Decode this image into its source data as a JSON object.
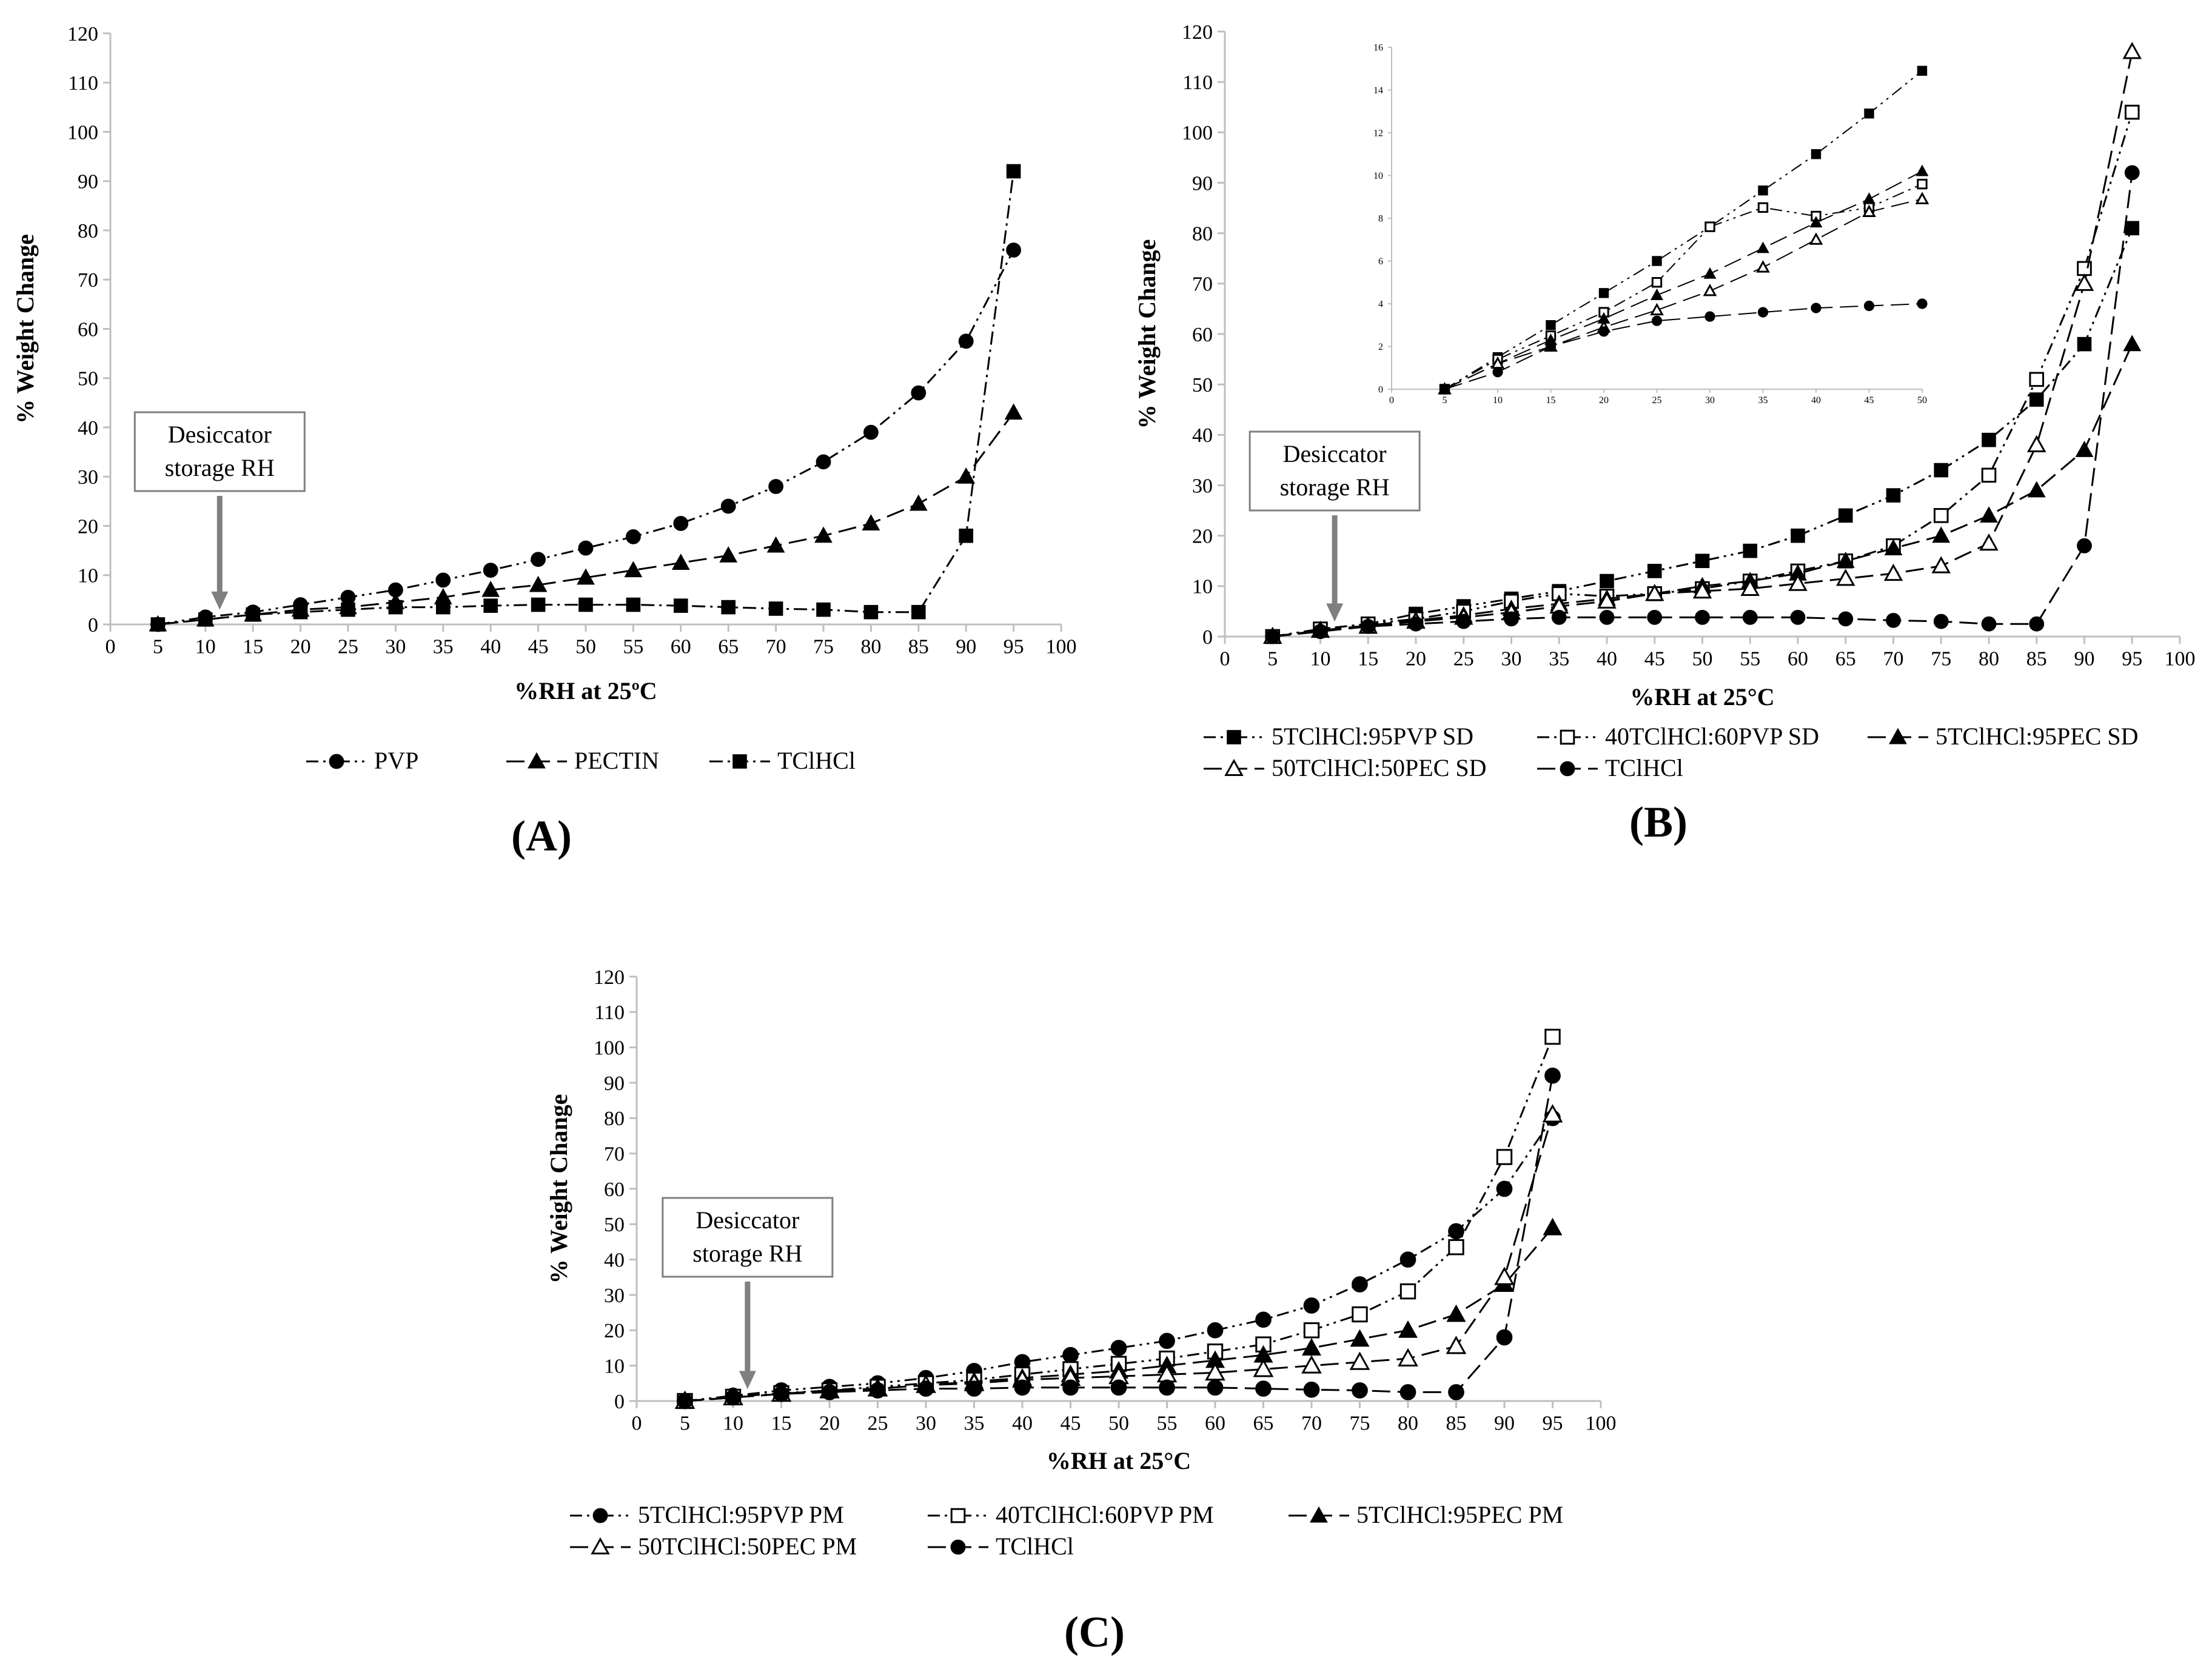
{
  "colors": {
    "axis": "#bfbfbf",
    "ink": "#000000",
    "arrow": "#808080",
    "box": "#808080"
  },
  "annotation": {
    "line1": "Desiccator",
    "line2": "storage RH"
  },
  "chart_data": [
    {
      "id": "A",
      "type": "line",
      "panel_label": "(A)",
      "xlabel": "%RH at 25ºC",
      "ylabel": "% Weight Change",
      "xlim": [
        0,
        100
      ],
      "ylim": [
        0,
        120
      ],
      "xticks": [
        0,
        5,
        10,
        15,
        20,
        25,
        30,
        35,
        40,
        45,
        50,
        55,
        60,
        65,
        70,
        75,
        80,
        85,
        90,
        95,
        100
      ],
      "yticks": [
        0,
        10,
        20,
        30,
        40,
        50,
        60,
        70,
        80,
        90,
        100,
        110,
        120
      ],
      "annotation_x": 11.5,
      "series": [
        {
          "name": "PVP",
          "marker": "circle",
          "dash": "dashdotdot",
          "x": [
            5,
            10,
            15,
            20,
            25,
            30,
            35,
            40,
            45,
            50,
            55,
            60,
            65,
            70,
            75,
            80,
            85,
            90,
            95
          ],
          "y": [
            0,
            1.5,
            2.5,
            4,
            5.5,
            7,
            9,
            11,
            13.2,
            15.5,
            17.8,
            20.5,
            24,
            28,
            33,
            39,
            47,
            57.5,
            76
          ]
        },
        {
          "name": "PECTIN",
          "marker": "triangle",
          "dash": "longdash",
          "x": [
            5,
            10,
            15,
            20,
            25,
            30,
            35,
            40,
            45,
            50,
            55,
            60,
            65,
            70,
            75,
            80,
            85,
            90,
            95
          ],
          "y": [
            0,
            1,
            2,
            3,
            3.5,
            4.5,
            5.5,
            7,
            8,
            9.5,
            11,
            12.5,
            14,
            16,
            18,
            20.5,
            24.5,
            30,
            43
          ]
        },
        {
          "name": "TClHCl",
          "marker": "square",
          "dash": "dashdot",
          "x": [
            5,
            10,
            15,
            20,
            25,
            30,
            35,
            40,
            45,
            50,
            55,
            60,
            65,
            70,
            75,
            80,
            85,
            90,
            95
          ],
          "y": [
            0,
            1,
            2,
            2.5,
            3,
            3.5,
            3.5,
            3.8,
            4,
            4,
            4,
            3.8,
            3.5,
            3.2,
            3,
            2.5,
            2.5,
            18,
            92
          ]
        }
      ]
    },
    {
      "id": "B",
      "type": "line",
      "panel_label": "(B)",
      "xlabel": "%RH at 25°C",
      "ylabel": "% Weight Change",
      "xlim": [
        0,
        100
      ],
      "ylim": [
        0,
        120
      ],
      "xticks": [
        0,
        5,
        10,
        15,
        20,
        25,
        30,
        35,
        40,
        45,
        50,
        55,
        60,
        65,
        70,
        75,
        80,
        85,
        90,
        95,
        100
      ],
      "yticks": [
        0,
        10,
        20,
        30,
        40,
        50,
        60,
        70,
        80,
        90,
        100,
        110,
        120
      ],
      "annotation_x": 11.5,
      "series": [
        {
          "name": "5TClHCl:95PVP SD",
          "marker": "square",
          "dash": "dashdotdot",
          "x": [
            5,
            10,
            15,
            20,
            25,
            30,
            35,
            40,
            45,
            50,
            55,
            60,
            65,
            70,
            75,
            80,
            85,
            90,
            95
          ],
          "y": [
            0,
            1.5,
            2.5,
            4.5,
            6,
            7.5,
            9,
            11,
            13,
            15,
            17,
            20,
            24,
            28,
            33,
            39,
            47,
            58,
            81
          ]
        },
        {
          "name": "40TClHCl:60PVP SD",
          "marker": "square-open",
          "dash": "dashdotdot",
          "x": [
            5,
            10,
            15,
            20,
            25,
            30,
            35,
            40,
            45,
            50,
            55,
            60,
            65,
            70,
            75,
            80,
            85,
            90,
            95
          ],
          "y": [
            0,
            1.5,
            2.5,
            3.5,
            5,
            7,
            8.5,
            8,
            8.5,
            9.5,
            11,
            13,
            15,
            18,
            24,
            32,
            51,
            73,
            104
          ]
        },
        {
          "name": "5TClHCl:95PEC SD",
          "marker": "triangle",
          "dash": "longdash",
          "x": [
            5,
            10,
            15,
            20,
            25,
            30,
            35,
            40,
            45,
            50,
            55,
            60,
            65,
            70,
            75,
            80,
            85,
            90,
            95
          ],
          "y": [
            0,
            1.2,
            2.2,
            3.2,
            4.2,
            5.5,
            6.5,
            7.5,
            8.5,
            10,
            11,
            12.5,
            15,
            17.5,
            20,
            24,
            29,
            37,
            58
          ]
        },
        {
          "name": "50TClHCl:50PEC SD",
          "marker": "triangle-open",
          "dash": "longdash",
          "x": [
            5,
            10,
            15,
            20,
            25,
            30,
            35,
            40,
            45,
            50,
            55,
            60,
            65,
            70,
            75,
            80,
            85,
            90,
            95
          ],
          "y": [
            0,
            1.2,
            2,
            3,
            3.8,
            4.8,
            6,
            7,
            8.5,
            9,
            9.5,
            10.5,
            11.5,
            12.5,
            14,
            18.5,
            38,
            70,
            116
          ]
        },
        {
          "name": "TClHCl",
          "marker": "circle",
          "dash": "longdash",
          "x": [
            5,
            10,
            15,
            20,
            25,
            30,
            35,
            40,
            45,
            50,
            55,
            60,
            65,
            70,
            75,
            80,
            85,
            90,
            95
          ],
          "y": [
            0,
            1,
            2,
            2.5,
            3,
            3.5,
            3.8,
            3.8,
            3.8,
            3.8,
            3.8,
            3.8,
            3.5,
            3.2,
            3,
            2.5,
            2.5,
            18,
            92
          ]
        }
      ],
      "inset": {
        "xlim": [
          0,
          50
        ],
        "ylim": [
          0,
          16
        ],
        "xticks": [
          0,
          5,
          10,
          15,
          20,
          25,
          30,
          35,
          40,
          45,
          50
        ],
        "yticks": [
          0,
          2,
          4,
          6,
          8,
          10,
          12,
          14,
          16
        ],
        "series": [
          {
            "name": "5TClHCl:95PVP SD",
            "marker": "square",
            "dash": "dashdotdot",
            "x": [
              5,
              10,
              15,
              20,
              25,
              30,
              35,
              40,
              45,
              50
            ],
            "y": [
              0,
              1.5,
              3,
              4.5,
              6,
              7.6,
              9.3,
              11,
              12.9,
              14.9
            ]
          },
          {
            "name": "40TClHCl:60PVP SD",
            "marker": "square-open",
            "dash": "dashdotdot",
            "x": [
              5,
              10,
              15,
              20,
              25,
              30,
              35,
              40,
              45,
              50
            ],
            "y": [
              0,
              1.4,
              2.5,
              3.6,
              5,
              7.6,
              8.5,
              8.1,
              8.5,
              9.6
            ]
          },
          {
            "name": "5TClHCl:95PEC SD",
            "marker": "triangle",
            "dash": "longdash",
            "x": [
              5,
              10,
              15,
              20,
              25,
              30,
              35,
              40,
              45,
              50
            ],
            "y": [
              0,
              1.2,
              2.3,
              3.3,
              4.4,
              5.4,
              6.6,
              7.8,
              8.9,
              10.2
            ]
          },
          {
            "name": "50TClHCl:50PEC SD",
            "marker": "triangle-open",
            "dash": "longdash",
            "x": [
              5,
              10,
              15,
              20,
              25,
              30,
              35,
              40,
              45,
              50
            ],
            "y": [
              0,
              1.2,
              2,
              2.9,
              3.7,
              4.6,
              5.7,
              7,
              8.3,
              8.9
            ]
          },
          {
            "name": "TClHCl",
            "marker": "circle",
            "dash": "longdash",
            "x": [
              5,
              10,
              15,
              20,
              25,
              30,
              35,
              40,
              45,
              50
            ],
            "y": [
              0,
              0.8,
              2,
              2.7,
              3.2,
              3.4,
              3.6,
              3.8,
              3.9,
              4
            ]
          }
        ]
      }
    },
    {
      "id": "C",
      "type": "line",
      "panel_label": "(C)",
      "xlabel": "%RH at 25°C",
      "ylabel": "% Weight Change",
      "xlim": [
        0,
        100
      ],
      "ylim": [
        0,
        120
      ],
      "xticks": [
        0,
        5,
        10,
        15,
        20,
        25,
        30,
        35,
        40,
        45,
        50,
        55,
        60,
        65,
        70,
        75,
        80,
        85,
        90,
        95,
        100
      ],
      "yticks": [
        0,
        10,
        20,
        30,
        40,
        50,
        60,
        70,
        80,
        90,
        100,
        110,
        120
      ],
      "annotation_x": 11.5,
      "series": [
        {
          "name": "5TClHCl:95PVP PM",
          "marker": "circle",
          "dash": "dashdotdot",
          "x": [
            5,
            10,
            15,
            20,
            25,
            30,
            35,
            40,
            45,
            50,
            55,
            60,
            65,
            70,
            75,
            80,
            85,
            90,
            95
          ],
          "y": [
            0,
            1.5,
            3,
            4,
            5,
            6.5,
            8.5,
            11,
            13,
            15,
            17,
            20,
            23,
            27,
            33,
            40,
            48,
            60,
            80
          ]
        },
        {
          "name": "40TClHCl:60PVP PM",
          "marker": "square-open",
          "dash": "dashdotdot",
          "x": [
            5,
            10,
            15,
            20,
            25,
            30,
            35,
            40,
            45,
            50,
            55,
            60,
            65,
            70,
            75,
            80,
            85,
            90,
            95
          ],
          "y": [
            0,
            1.2,
            2.2,
            3,
            4,
            5,
            6,
            7.5,
            9,
            10.5,
            12,
            14,
            16,
            20,
            24.5,
            31,
            43.5,
            69,
            103
          ]
        },
        {
          "name": "5TClHCl:95PEC PM",
          "marker": "triangle",
          "dash": "longdash",
          "x": [
            5,
            10,
            15,
            20,
            25,
            30,
            35,
            40,
            45,
            50,
            55,
            60,
            65,
            70,
            75,
            80,
            85,
            90,
            95
          ],
          "y": [
            0,
            1,
            2,
            3,
            3.5,
            4.5,
            5.5,
            6.5,
            7.5,
            8.5,
            10,
            11.5,
            13,
            15,
            17.5,
            20,
            24.5,
            33,
            49
          ]
        },
        {
          "name": "50TClHCl:50PEC PM",
          "marker": "triangle-open",
          "dash": "longdash",
          "x": [
            5,
            10,
            15,
            20,
            25,
            30,
            35,
            40,
            45,
            50,
            55,
            60,
            65,
            70,
            75,
            80,
            85,
            90,
            95
          ],
          "y": [
            0,
            1,
            2,
            3,
            3.5,
            4.5,
            5,
            6,
            6.5,
            7,
            7.5,
            8,
            9,
            10,
            11,
            12,
            15.5,
            35,
            81
          ]
        },
        {
          "name": "TClHCl",
          "marker": "circle",
          "dash": "longdash",
          "x": [
            5,
            10,
            15,
            20,
            25,
            30,
            35,
            40,
            45,
            50,
            55,
            60,
            65,
            70,
            75,
            80,
            85,
            90,
            95
          ],
          "y": [
            0,
            1,
            2,
            2.5,
            3,
            3.5,
            3.5,
            3.8,
            3.8,
            3.8,
            3.8,
            3.8,
            3.5,
            3.2,
            3,
            2.5,
            2.5,
            18,
            92
          ]
        }
      ]
    }
  ]
}
